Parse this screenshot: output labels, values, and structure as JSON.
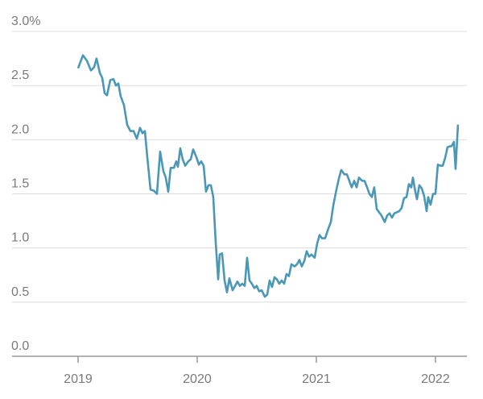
{
  "chart_data": {
    "type": "line",
    "color": "#4a98b5",
    "grid": true,
    "xlim": [
      2018.446,
      2022.264
    ],
    "ylim": [
      0,
      3
    ],
    "xticks": [
      2019,
      2020,
      2021,
      2022
    ],
    "yticks": [
      {
        "value": 0,
        "label": "0.0"
      },
      0.5,
      {
        "value": 1,
        "label": "1.0"
      },
      1.5,
      {
        "value": 2,
        "label": "2.0"
      },
      2.5,
      {
        "value": 3,
        "label": "3.0%"
      }
    ],
    "x": [
      2019.0,
      2019.041,
      2019.074,
      2019.108,
      2019.135,
      2019.155,
      2019.182,
      2019.203,
      2019.223,
      2019.243,
      2019.27,
      2019.297,
      2019.318,
      2019.338,
      2019.358,
      2019.385,
      2019.412,
      2019.439,
      2019.466,
      2019.493,
      2019.52,
      2019.541,
      2019.561,
      2019.581,
      2019.608,
      2019.635,
      2019.662,
      2019.689,
      2019.716,
      2019.736,
      2019.757,
      2019.777,
      2019.804,
      2019.824,
      2019.838,
      2019.858,
      2019.878,
      2019.899,
      2019.926,
      2019.946,
      2019.966,
      2019.993,
      2020.014,
      2020.034,
      2020.054,
      2020.074,
      2020.095,
      2020.115,
      2020.135,
      2020.155,
      2020.176,
      2020.189,
      2020.209,
      2020.23,
      2020.25,
      2020.27,
      2020.297,
      2020.318,
      2020.338,
      2020.358,
      2020.378,
      2020.399,
      2020.419,
      2020.439,
      2020.459,
      2020.48,
      2020.5,
      2020.52,
      2020.541,
      2020.568,
      2020.588,
      2020.608,
      2020.628,
      2020.649,
      2020.669,
      2020.689,
      2020.709,
      2020.73,
      2020.75,
      2020.77,
      2020.791,
      2020.818,
      2020.838,
      2020.858,
      2020.878,
      2020.899,
      2020.919,
      2020.939,
      2020.959,
      2020.986,
      2021.007,
      2021.027,
      2021.047,
      2021.074,
      2021.101,
      2021.122,
      2021.142,
      2021.169,
      2021.189,
      2021.209,
      2021.236,
      2021.257,
      2021.277,
      2021.297,
      2021.318,
      2021.338,
      2021.358,
      2021.385,
      2021.405,
      2021.426,
      2021.446,
      2021.466,
      2021.486,
      2021.507,
      2021.527,
      2021.547,
      2021.574,
      2021.595,
      2021.615,
      2021.635,
      2021.655,
      2021.676,
      2021.696,
      2021.716,
      2021.736,
      2021.757,
      2021.777,
      2021.797,
      2021.811,
      2021.831,
      2021.845,
      2021.865,
      2021.885,
      2021.905,
      2021.926,
      2021.939,
      2021.959,
      2021.98,
      2022.0,
      2022.02,
      2022.041,
      2022.061,
      2022.081,
      2022.101,
      2022.122,
      2022.135,
      2022.155,
      2022.169,
      2022.189
    ],
    "values": [
      2.66,
      2.78,
      2.73,
      2.64,
      2.67,
      2.75,
      2.62,
      2.57,
      2.43,
      2.41,
      2.55,
      2.56,
      2.5,
      2.52,
      2.4,
      2.32,
      2.14,
      2.08,
      2.08,
      2.01,
      2.11,
      2.06,
      2.08,
      1.84,
      1.54,
      1.53,
      1.5,
      1.89,
      1.71,
      1.65,
      1.52,
      1.74,
      1.74,
      1.8,
      1.75,
      1.92,
      1.82,
      1.76,
      1.8,
      1.82,
      1.91,
      1.84,
      1.77,
      1.8,
      1.76,
      1.52,
      1.58,
      1.58,
      1.47,
      1.06,
      0.71,
      0.94,
      0.95,
      0.7,
      0.59,
      0.72,
      0.61,
      0.65,
      0.69,
      0.65,
      0.67,
      0.65,
      0.91,
      0.7,
      0.67,
      0.63,
      0.65,
      0.6,
      0.61,
      0.55,
      0.57,
      0.7,
      0.64,
      0.73,
      0.71,
      0.67,
      0.7,
      0.67,
      0.76,
      0.74,
      0.85,
      0.83,
      0.85,
      0.89,
      0.83,
      0.88,
      0.97,
      0.92,
      0.94,
      0.91,
      1.04,
      1.12,
      1.09,
      1.09,
      1.18,
      1.24,
      1.39,
      1.54,
      1.64,
      1.72,
      1.68,
      1.68,
      1.62,
      1.56,
      1.62,
      1.56,
      1.65,
      1.62,
      1.62,
      1.56,
      1.5,
      1.47,
      1.56,
      1.36,
      1.33,
      1.3,
      1.24,
      1.3,
      1.32,
      1.28,
      1.32,
      1.33,
      1.34,
      1.37,
      1.46,
      1.47,
      1.59,
      1.56,
      1.65,
      1.52,
      1.45,
      1.58,
      1.55,
      1.48,
      1.34,
      1.47,
      1.4,
      1.5,
      1.5,
      1.77,
      1.76,
      1.76,
      1.83,
      1.93,
      1.94,
      1.94,
      1.98,
      1.73,
      2.14
    ]
  }
}
